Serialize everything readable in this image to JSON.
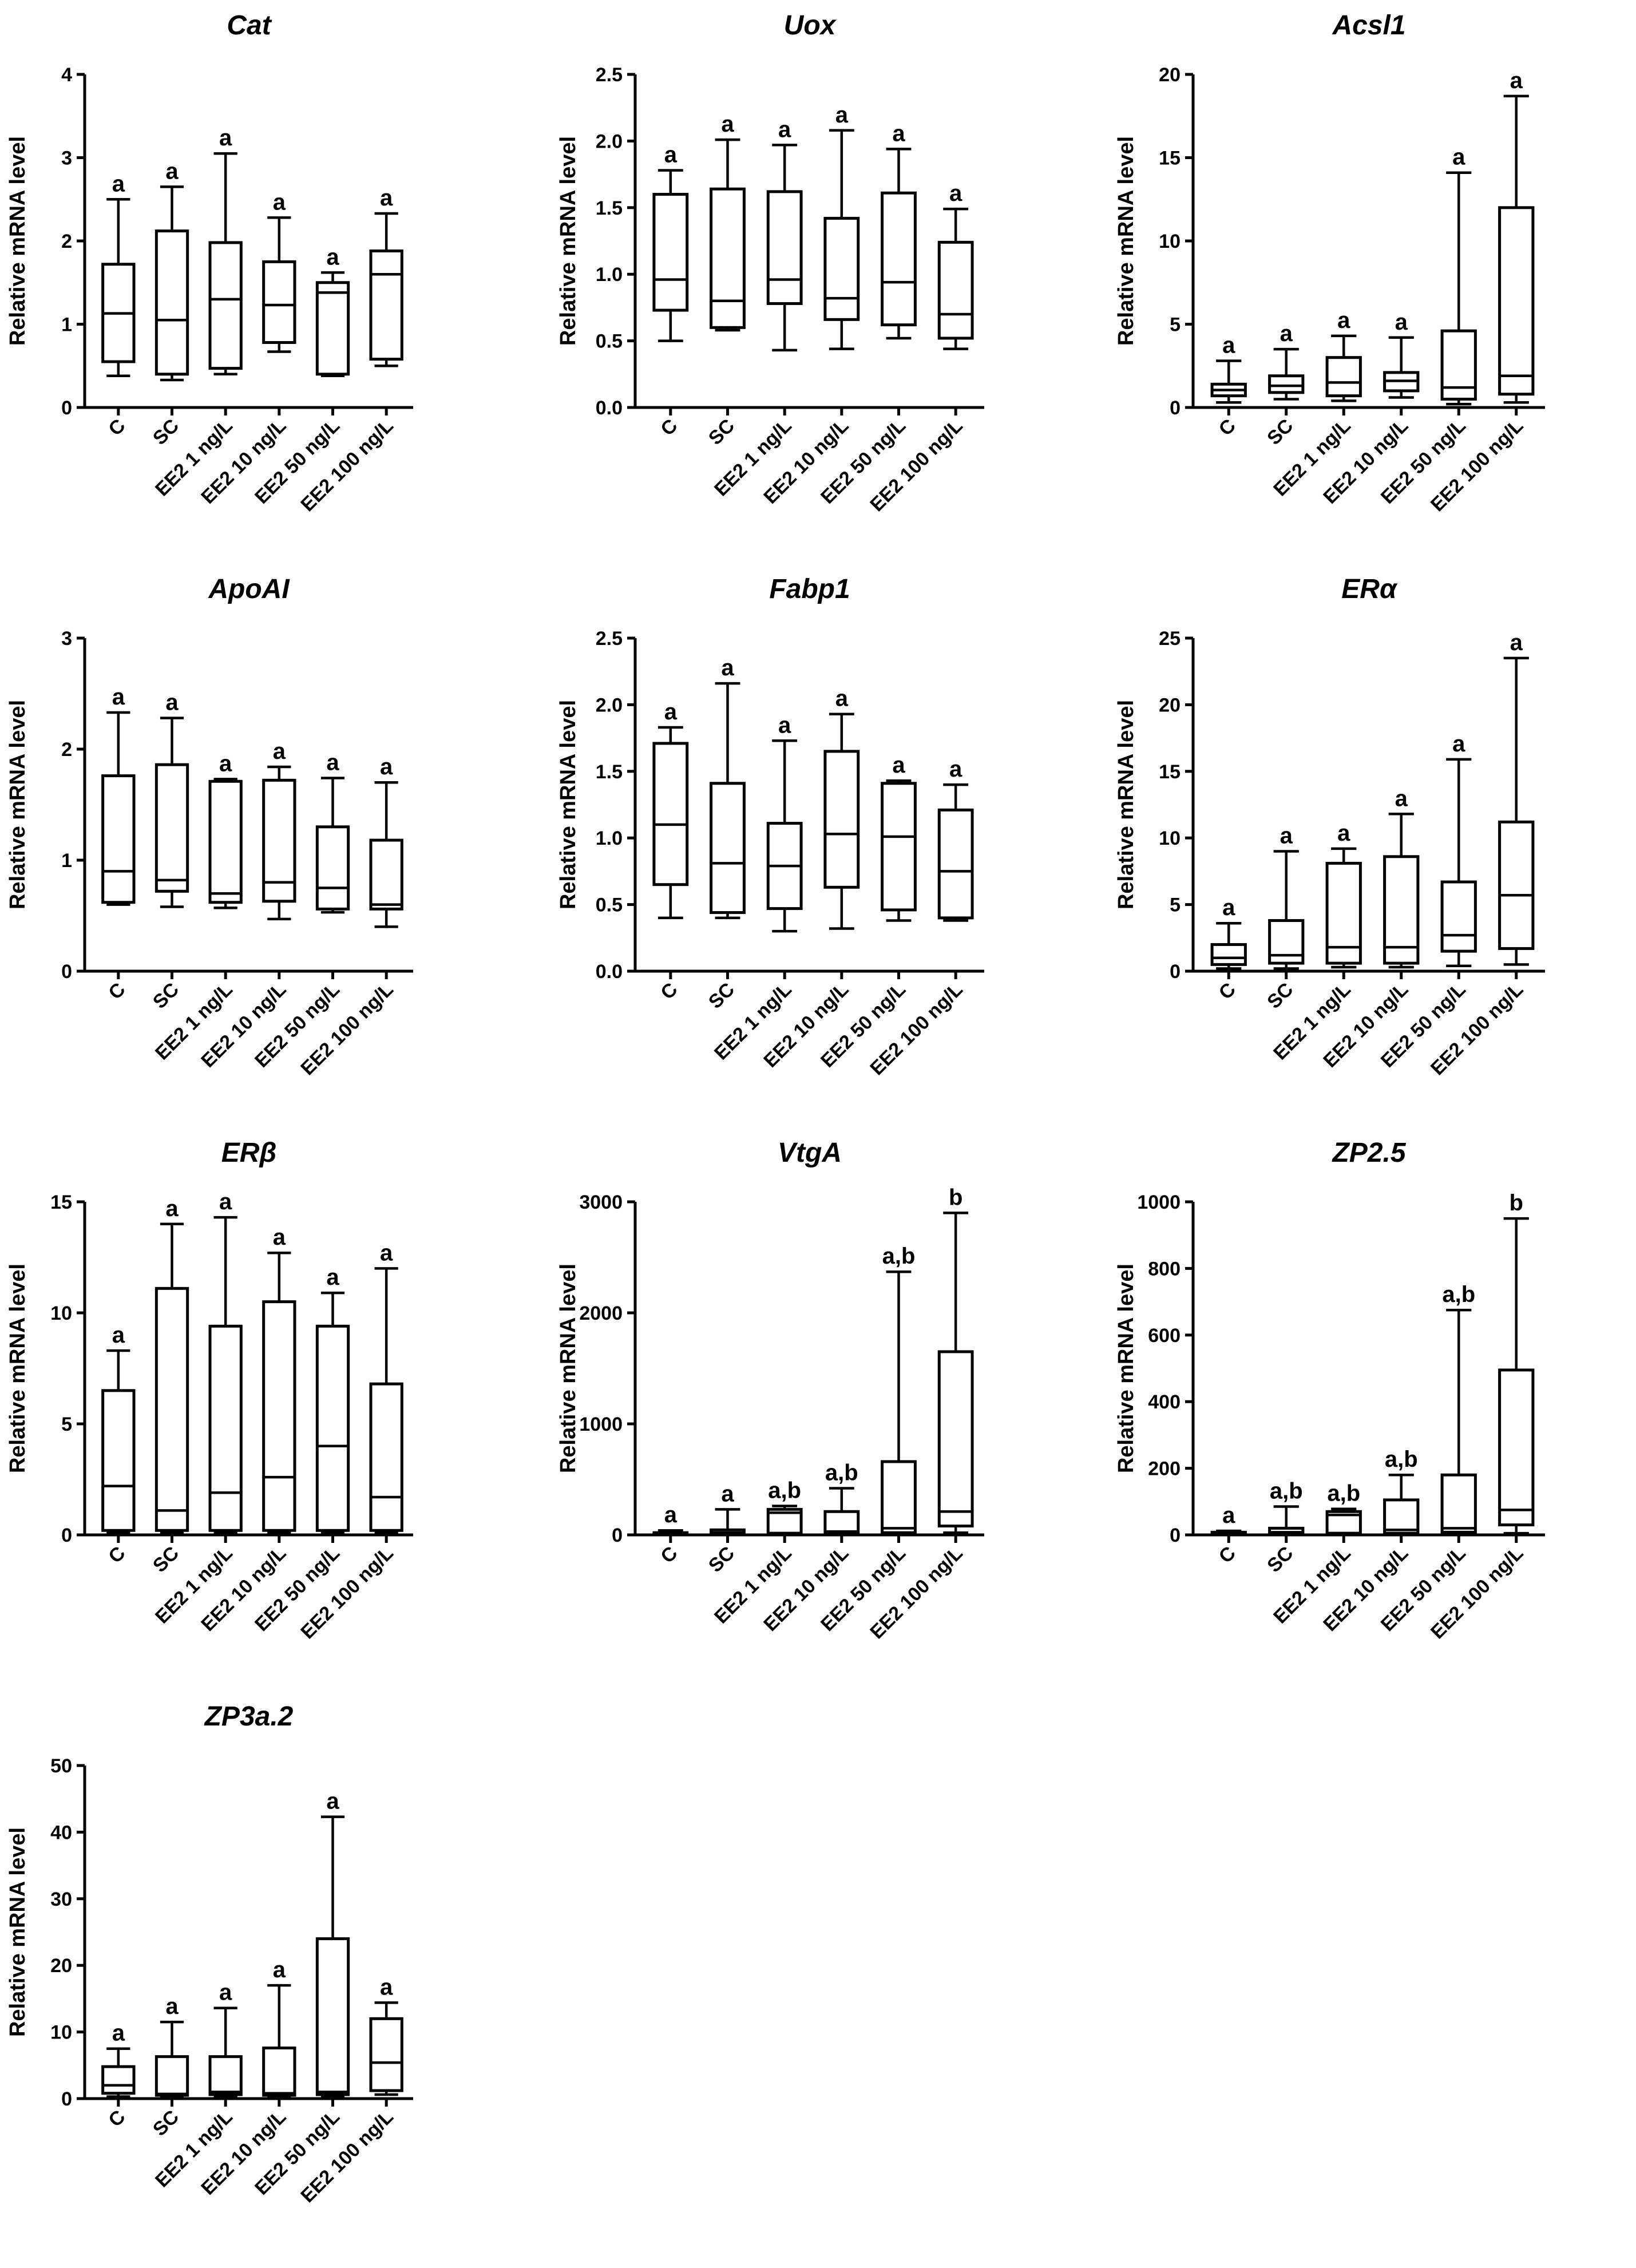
{
  "figure": {
    "panel_count": 10
  },
  "chart_data": [
    {
      "type": "box",
      "title": "Cat",
      "ylabel": "Relative mRNA level",
      "ylim": [
        0,
        4
      ],
      "yticks": [
        "0",
        "1",
        "2",
        "3",
        "4"
      ],
      "categories": [
        "C",
        "SC",
        "EE2 1 ng/L",
        "EE2 10 ng/L",
        "EE2 50 ng/L",
        "EE2 100 ng/L"
      ],
      "boxes": [
        {
          "min": 0.38,
          "q1": 0.55,
          "median": 1.13,
          "q3": 1.72,
          "max": 2.5,
          "sig": "a"
        },
        {
          "min": 0.33,
          "q1": 0.4,
          "median": 1.05,
          "q3": 2.12,
          "max": 2.65,
          "sig": "a"
        },
        {
          "min": 0.4,
          "q1": 0.47,
          "median": 1.3,
          "q3": 1.98,
          "max": 3.05,
          "sig": "a"
        },
        {
          "min": 0.67,
          "q1": 0.78,
          "median": 1.23,
          "q3": 1.75,
          "max": 2.28,
          "sig": "a"
        },
        {
          "min": 0.38,
          "q1": 0.4,
          "median": 1.38,
          "q3": 1.5,
          "max": 1.62,
          "sig": "a"
        },
        {
          "min": 0.5,
          "q1": 0.58,
          "median": 1.6,
          "q3": 1.88,
          "max": 2.33,
          "sig": "a"
        }
      ]
    },
    {
      "type": "box",
      "title": "Uox",
      "ylabel": "Relative mRNA level",
      "ylim": [
        0,
        2.5
      ],
      "yticks": [
        "0.0",
        "0.5",
        "1.0",
        "1.5",
        "2.0",
        "2.5"
      ],
      "categories": [
        "C",
        "SC",
        "EE2 1 ng/L",
        "EE2 10 ng/L",
        "EE2 50 ng/L",
        "EE2 100 ng/L"
      ],
      "boxes": [
        {
          "min": 0.5,
          "q1": 0.73,
          "median": 0.96,
          "q3": 1.6,
          "max": 1.78,
          "sig": "a"
        },
        {
          "min": 0.58,
          "q1": 0.6,
          "median": 0.8,
          "q3": 1.64,
          "max": 2.01,
          "sig": "a"
        },
        {
          "min": 0.43,
          "q1": 0.78,
          "median": 0.96,
          "q3": 1.62,
          "max": 1.97,
          "sig": "a"
        },
        {
          "min": 0.44,
          "q1": 0.66,
          "median": 0.82,
          "q3": 1.42,
          "max": 2.08,
          "sig": "a"
        },
        {
          "min": 0.52,
          "q1": 0.62,
          "median": 0.94,
          "q3": 1.61,
          "max": 1.94,
          "sig": "a"
        },
        {
          "min": 0.44,
          "q1": 0.52,
          "median": 0.7,
          "q3": 1.24,
          "max": 1.49,
          "sig": "a"
        }
      ]
    },
    {
      "type": "box",
      "title": "Acsl1",
      "ylabel": "Relative mRNA level",
      "ylim": [
        0,
        20
      ],
      "yticks": [
        "0",
        "5",
        "10",
        "15",
        "20"
      ],
      "categories": [
        "C",
        "SC",
        "EE2 1 ng/L",
        "EE2 10 ng/L",
        "EE2 50 ng/L",
        "EE2 100 ng/L"
      ],
      "boxes": [
        {
          "min": 0.3,
          "q1": 0.7,
          "median": 1.05,
          "q3": 1.4,
          "max": 2.8,
          "sig": "a"
        },
        {
          "min": 0.5,
          "q1": 0.9,
          "median": 1.3,
          "q3": 1.9,
          "max": 3.5,
          "sig": "a"
        },
        {
          "min": 0.4,
          "q1": 0.7,
          "median": 1.5,
          "q3": 3.0,
          "max": 4.3,
          "sig": "a"
        },
        {
          "min": 0.6,
          "q1": 1.0,
          "median": 1.6,
          "q3": 2.1,
          "max": 4.2,
          "sig": "a"
        },
        {
          "min": 0.2,
          "q1": 0.5,
          "median": 1.2,
          "q3": 4.6,
          "max": 14.1,
          "sig": "a"
        },
        {
          "min": 0.3,
          "q1": 0.8,
          "median": 1.9,
          "q3": 12.0,
          "max": 18.7,
          "sig": "a"
        }
      ]
    },
    {
      "type": "box",
      "title": "ApoAI",
      "ylabel": "Relative mRNA level",
      "ylim": [
        0,
        3
      ],
      "yticks": [
        "0",
        "1",
        "2",
        "3"
      ],
      "categories": [
        "C",
        "SC",
        "EE2 1 ng/L",
        "EE2 10 ng/L",
        "EE2 50 ng/L",
        "EE2 100 ng/L"
      ],
      "boxes": [
        {
          "min": 0.6,
          "q1": 0.62,
          "median": 0.9,
          "q3": 1.76,
          "max": 2.33,
          "sig": "a"
        },
        {
          "min": 0.58,
          "q1": 0.72,
          "median": 0.82,
          "q3": 1.86,
          "max": 2.28,
          "sig": "a"
        },
        {
          "min": 0.57,
          "q1": 0.62,
          "median": 0.7,
          "q3": 1.71,
          "max": 1.73,
          "sig": "a"
        },
        {
          "min": 0.47,
          "q1": 0.63,
          "median": 0.8,
          "q3": 1.72,
          "max": 1.84,
          "sig": "a"
        },
        {
          "min": 0.53,
          "q1": 0.56,
          "median": 0.75,
          "q3": 1.3,
          "max": 1.74,
          "sig": "a"
        },
        {
          "min": 0.4,
          "q1": 0.56,
          "median": 0.6,
          "q3": 1.18,
          "max": 1.7,
          "sig": "a"
        }
      ]
    },
    {
      "type": "box",
      "title": "Fabp1",
      "ylabel": "Relative mRNA level",
      "ylim": [
        0,
        2.5
      ],
      "yticks": [
        "0.0",
        "0.5",
        "1.0",
        "1.5",
        "2.0",
        "2.5"
      ],
      "categories": [
        "C",
        "SC",
        "EE2 1 ng/L",
        "EE2 10 ng/L",
        "EE2 50 ng/L",
        "EE2 100 ng/L"
      ],
      "boxes": [
        {
          "min": 0.4,
          "q1": 0.65,
          "median": 1.1,
          "q3": 1.71,
          "max": 1.83,
          "sig": "a"
        },
        {
          "min": 0.4,
          "q1": 0.44,
          "median": 0.81,
          "q3": 1.41,
          "max": 2.16,
          "sig": "a"
        },
        {
          "min": 0.3,
          "q1": 0.47,
          "median": 0.79,
          "q3": 1.11,
          "max": 1.73,
          "sig": "a"
        },
        {
          "min": 0.32,
          "q1": 0.63,
          "median": 1.03,
          "q3": 1.65,
          "max": 1.93,
          "sig": "a"
        },
        {
          "min": 0.38,
          "q1": 0.46,
          "median": 1.01,
          "q3": 1.41,
          "max": 1.43,
          "sig": "a"
        },
        {
          "min": 0.38,
          "q1": 0.4,
          "median": 0.75,
          "q3": 1.21,
          "max": 1.4,
          "sig": "a"
        }
      ]
    },
    {
      "type": "box",
      "title": "ERα",
      "ylabel": "Relative mRNA level",
      "ylim": [
        0,
        25
      ],
      "yticks": [
        "0",
        "5",
        "10",
        "15",
        "20",
        "25"
      ],
      "categories": [
        "C",
        "SC",
        "EE2 1 ng/L",
        "EE2 10 ng/L",
        "EE2 50 ng/L",
        "EE2 100 ng/L"
      ],
      "boxes": [
        {
          "min": 0.2,
          "q1": 0.5,
          "median": 1.0,
          "q3": 2.0,
          "max": 3.6,
          "sig": "a"
        },
        {
          "min": 0.2,
          "q1": 0.6,
          "median": 1.2,
          "q3": 3.8,
          "max": 9.0,
          "sig": "a"
        },
        {
          "min": 0.3,
          "q1": 0.6,
          "median": 1.8,
          "q3": 8.1,
          "max": 9.2,
          "sig": "a"
        },
        {
          "min": 0.3,
          "q1": 0.6,
          "median": 1.8,
          "q3": 8.6,
          "max": 11.8,
          "sig": "a"
        },
        {
          "min": 0.4,
          "q1": 1.5,
          "median": 2.7,
          "q3": 6.7,
          "max": 15.9,
          "sig": "a"
        },
        {
          "min": 0.5,
          "q1": 1.7,
          "median": 5.7,
          "q3": 11.2,
          "max": 23.5,
          "sig": "a"
        }
      ]
    },
    {
      "type": "box",
      "title": "ERβ",
      "ylabel": "Relative mRNA level",
      "ylim": [
        0,
        15
      ],
      "yticks": [
        "0",
        "5",
        "10",
        "15"
      ],
      "categories": [
        "C",
        "SC",
        "EE2 1 ng/L",
        "EE2 10 ng/L",
        "EE2 50 ng/L",
        "EE2 100 ng/L"
      ],
      "boxes": [
        {
          "min": 0.1,
          "q1": 0.2,
          "median": 2.2,
          "q3": 6.5,
          "max": 8.3,
          "sig": "a"
        },
        {
          "min": 0.1,
          "q1": 0.2,
          "median": 1.1,
          "q3": 11.1,
          "max": 14.0,
          "sig": "a"
        },
        {
          "min": 0.1,
          "q1": 0.2,
          "median": 1.9,
          "q3": 9.4,
          "max": 14.3,
          "sig": "a"
        },
        {
          "min": 0.1,
          "q1": 0.2,
          "median": 2.6,
          "q3": 10.5,
          "max": 12.7,
          "sig": "a"
        },
        {
          "min": 0.1,
          "q1": 0.2,
          "median": 4.0,
          "q3": 9.4,
          "max": 10.9,
          "sig": "a"
        },
        {
          "min": 0.1,
          "q1": 0.2,
          "median": 1.7,
          "q3": 6.8,
          "max": 12.0,
          "sig": "a"
        }
      ]
    },
    {
      "type": "box",
      "title": "VtgA",
      "ylabel": "Relative mRNA level",
      "ylim": [
        0,
        3000
      ],
      "yticks": [
        "0",
        "1000",
        "2000",
        "3000"
      ],
      "categories": [
        "C",
        "SC",
        "EE2 1 ng/L",
        "EE2 10 ng/L",
        "EE2 50 ng/L",
        "EE2 100 ng/L"
      ],
      "boxes": [
        {
          "min": 2,
          "q1": 5,
          "median": 10,
          "q3": 20,
          "max": 40,
          "sig": "a"
        },
        {
          "min": 2,
          "q1": 5,
          "median": 20,
          "q3": 45,
          "max": 230,
          "sig": "a"
        },
        {
          "min": 5,
          "q1": 15,
          "median": 200,
          "q3": 230,
          "max": 260,
          "sig": "a,b"
        },
        {
          "min": 5,
          "q1": 10,
          "median": 30,
          "q3": 210,
          "max": 420,
          "sig": "a,b"
        },
        {
          "min": 5,
          "q1": 20,
          "median": 60,
          "q3": 660,
          "max": 2370,
          "sig": "a,b"
        },
        {
          "min": 20,
          "q1": 80,
          "median": 210,
          "q3": 1650,
          "max": 2900,
          "sig": "b"
        }
      ]
    },
    {
      "type": "box",
      "title": "ZP2.5",
      "ylabel": "Relative mRNA level",
      "ylim": [
        0,
        1000
      ],
      "yticks": [
        "0",
        "200",
        "400",
        "600",
        "800",
        "1000"
      ],
      "categories": [
        "C",
        "SC",
        "EE2 1 ng/L",
        "EE2 10 ng/L",
        "EE2 50 ng/L",
        "EE2 100 ng/L"
      ],
      "boxes": [
        {
          "min": 1,
          "q1": 2,
          "median": 4,
          "q3": 8,
          "max": 12,
          "sig": "a"
        },
        {
          "min": 1,
          "q1": 3,
          "median": 8,
          "q3": 20,
          "max": 85,
          "sig": "a,b"
        },
        {
          "min": 2,
          "q1": 5,
          "median": 60,
          "q3": 70,
          "max": 78,
          "sig": "a,b"
        },
        {
          "min": 2,
          "q1": 5,
          "median": 15,
          "q3": 105,
          "max": 180,
          "sig": "a,b"
        },
        {
          "min": 2,
          "q1": 8,
          "median": 20,
          "q3": 180,
          "max": 675,
          "sig": "a,b"
        },
        {
          "min": 5,
          "q1": 30,
          "median": 75,
          "q3": 495,
          "max": 950,
          "sig": "b"
        }
      ]
    },
    {
      "type": "box",
      "title": "ZP3a.2",
      "ylabel": "Relative mRNA level",
      "ylim": [
        0,
        50
      ],
      "yticks": [
        "0",
        "10",
        "20",
        "30",
        "40",
        "50"
      ],
      "categories": [
        "C",
        "SC",
        "EE2 1 ng/L",
        "EE2 10 ng/L",
        "EE2 50 ng/L",
        "EE2 100 ng/L"
      ],
      "boxes": [
        {
          "min": 0.3,
          "q1": 0.8,
          "median": 2.0,
          "q3": 4.8,
          "max": 7.5,
          "sig": "a"
        },
        {
          "min": 0.3,
          "q1": 0.5,
          "median": 0.7,
          "q3": 6.3,
          "max": 11.5,
          "sig": "a"
        },
        {
          "min": 0.3,
          "q1": 0.6,
          "median": 1.0,
          "q3": 6.3,
          "max": 13.6,
          "sig": "a"
        },
        {
          "min": 0.3,
          "q1": 0.5,
          "median": 0.8,
          "q3": 7.6,
          "max": 17.0,
          "sig": "a"
        },
        {
          "min": 0.3,
          "q1": 0.6,
          "median": 1.0,
          "q3": 24.0,
          "max": 42.3,
          "sig": "a"
        },
        {
          "min": 0.6,
          "q1": 1.2,
          "median": 5.4,
          "q3": 12.0,
          "max": 14.4,
          "sig": "a"
        }
      ]
    }
  ]
}
